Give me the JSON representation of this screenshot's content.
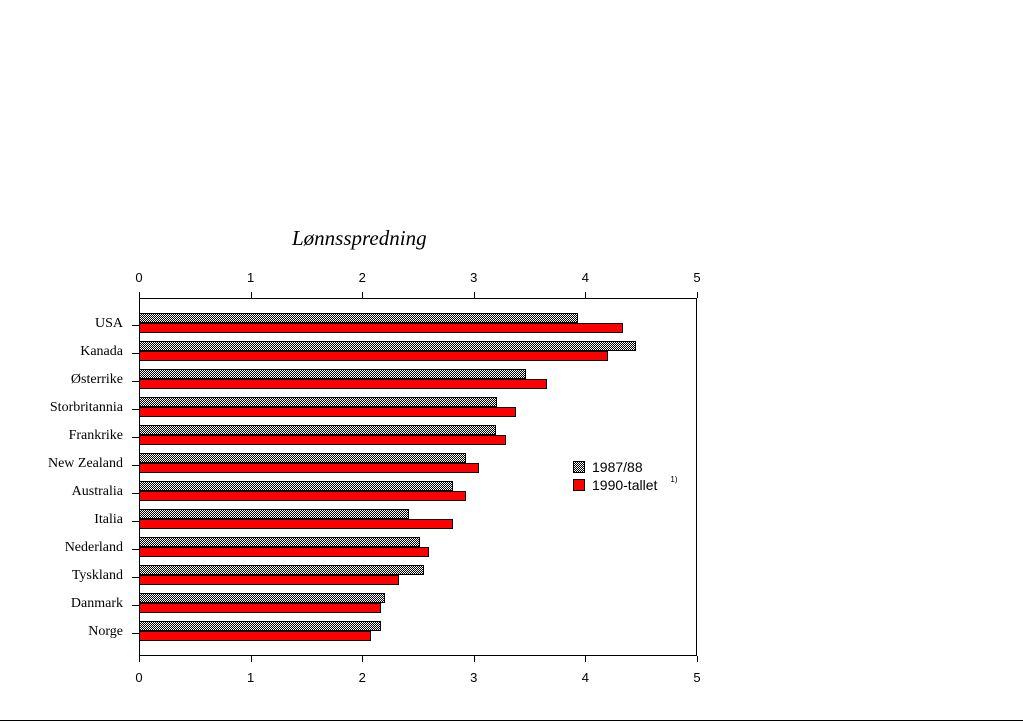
{
  "chart_data": {
    "type": "bar",
    "orientation": "horizontal",
    "title": "Lønnsspredning",
    "xlabel": "",
    "ylabel": "",
    "xlim": [
      0,
      5
    ],
    "x_ticks": [
      "0",
      "1",
      "2",
      "3",
      "4",
      "5"
    ],
    "categories": [
      "USA",
      "Kanada",
      "Østerrike",
      "Storbritannia",
      "Frankrike",
      "New Zealand",
      "Australia",
      "Italia",
      "Nederland",
      "Tyskland",
      "Danmark",
      "Norge"
    ],
    "series": [
      {
        "name": "1987/88",
        "color": "#808080",
        "values": [
          3.93,
          4.45,
          3.47,
          3.21,
          3.2,
          2.93,
          2.81,
          2.42,
          2.52,
          2.55,
          2.2,
          2.17
        ]
      },
      {
        "name": "1990-tallet",
        "color": "#ff0000",
        "values": [
          4.34,
          4.2,
          3.66,
          3.38,
          3.29,
          3.05,
          2.93,
          2.81,
          2.6,
          2.33,
          2.17,
          2.08
        ]
      }
    ],
    "legend": {
      "position": "right-inside",
      "entries": [
        "1987/88",
        "1990-tallet"
      ],
      "footnote_marker": "1)"
    },
    "grid": false
  }
}
